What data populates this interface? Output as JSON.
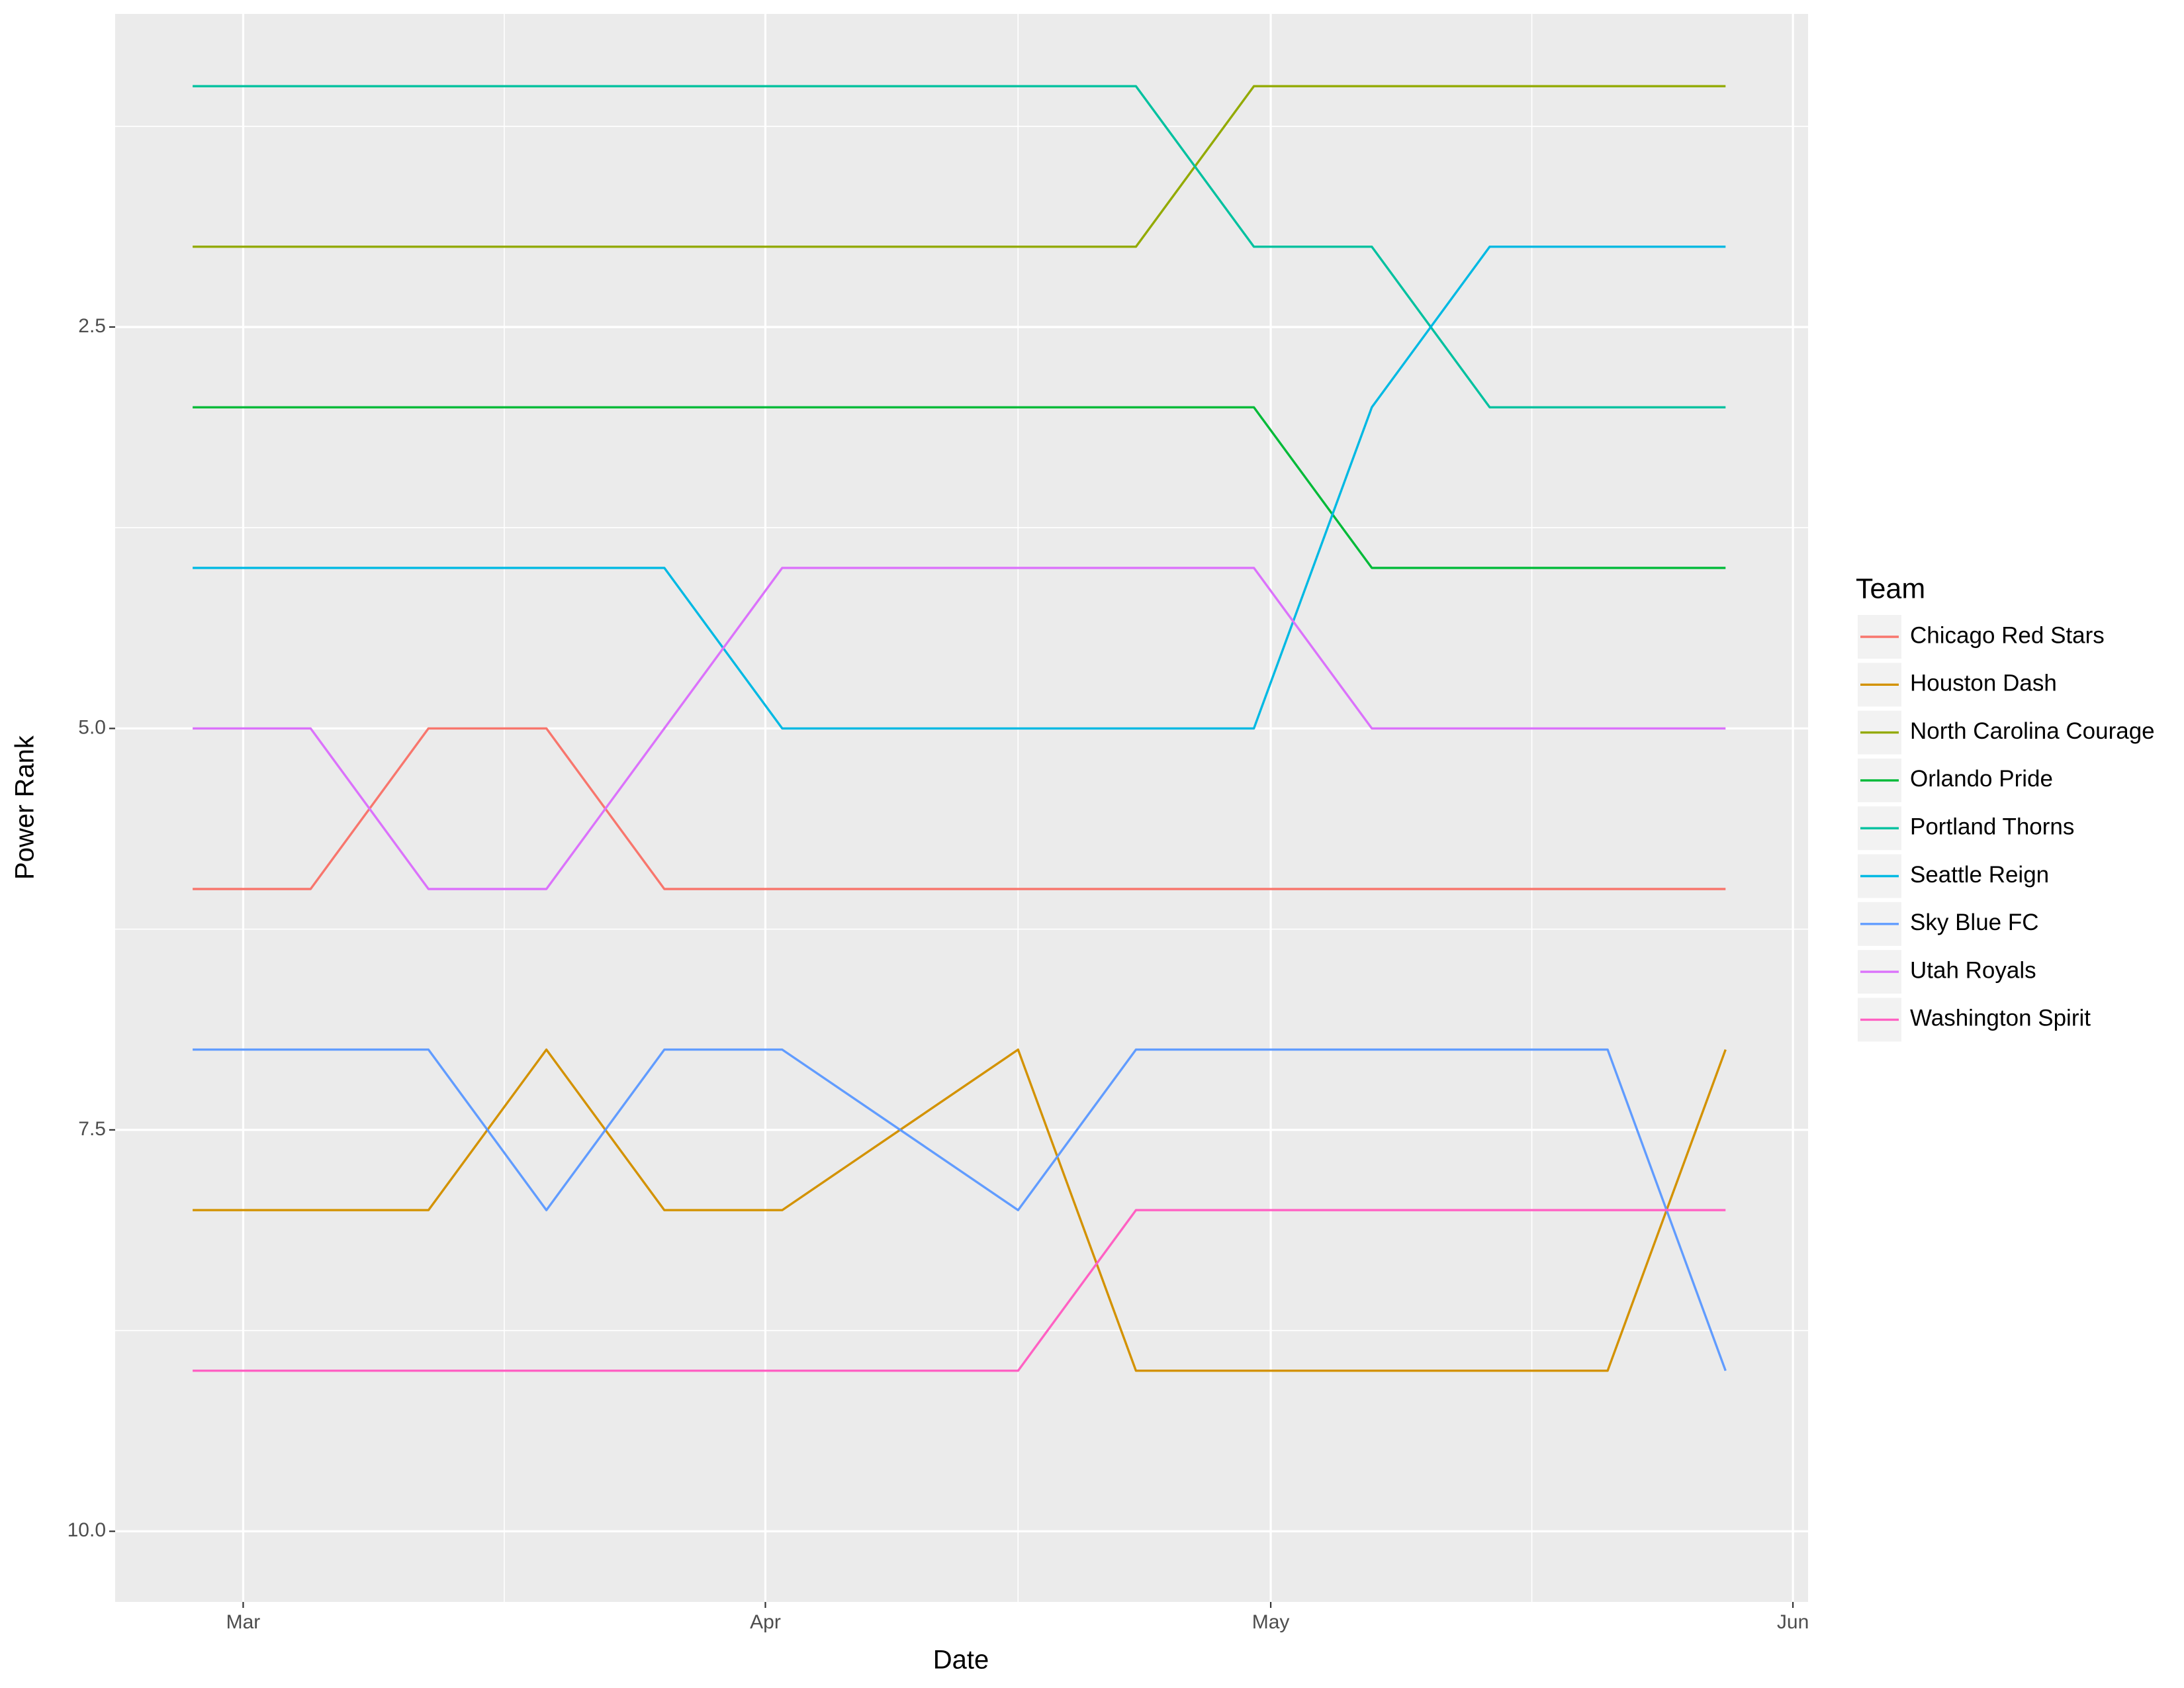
{
  "chart_data": {
    "type": "line",
    "xlabel": "Date",
    "ylabel": "Power Rank",
    "legend_title": "Team",
    "legend": "right",
    "grid": true,
    "y_reversed": true,
    "x": [
      57,
      64,
      71,
      78,
      85,
      92,
      99,
      106,
      113,
      120,
      127,
      134,
      141,
      148
    ],
    "xlim": [
      52.4,
      152.9
    ],
    "xticks": [
      {
        "value": 60,
        "label": "Mar"
      },
      {
        "value": 91,
        "label": "Apr"
      },
      {
        "value": 121,
        "label": "May"
      },
      {
        "value": 152,
        "label": "Jun"
      }
    ],
    "ylim": [
      0.55,
      10.44
    ],
    "yticks": [
      2.5,
      {
        "value": 5,
        "label": "5.0"
      },
      7.5,
      {
        "value": 10,
        "label": "10.0"
      }
    ],
    "series": [
      {
        "name": "Chicago Red Stars",
        "color": "#F8766D",
        "values": [
          6,
          6,
          5,
          5,
          6,
          6,
          6,
          6,
          6,
          6,
          6,
          6,
          6,
          6
        ]
      },
      {
        "name": "Houston Dash",
        "color": "#D39200",
        "values": [
          8,
          8,
          8,
          7,
          8,
          8,
          7.5,
          7,
          9,
          9,
          9,
          9,
          9,
          7
        ]
      },
      {
        "name": "North Carolina Courage",
        "color": "#93AA00",
        "values": [
          2,
          2,
          2,
          2,
          2,
          2,
          2,
          2,
          2,
          1,
          1,
          1,
          1,
          1
        ]
      },
      {
        "name": "Orlando Pride",
        "color": "#00BA38",
        "values": [
          3,
          3,
          3,
          3,
          3,
          3,
          3,
          3,
          3,
          3,
          4,
          4,
          4,
          4
        ]
      },
      {
        "name": "Portland Thorns",
        "color": "#00C19F",
        "values": [
          1,
          1,
          1,
          1,
          1,
          1,
          1,
          1,
          1,
          2,
          2,
          3,
          3,
          3
        ]
      },
      {
        "name": "Seattle Reign",
        "color": "#00B9E3",
        "values": [
          4,
          4,
          4,
          4,
          4,
          5,
          5,
          5,
          5,
          5,
          3,
          2,
          2,
          2
        ]
      },
      {
        "name": "Sky Blue FC",
        "color": "#619CFF",
        "values": [
          7,
          7,
          7,
          8,
          7,
          7,
          7.5,
          8,
          7,
          7,
          7,
          7,
          7,
          9
        ]
      },
      {
        "name": "Utah Royals",
        "color": "#DB72FB",
        "values": [
          5,
          5,
          6,
          6,
          5,
          4,
          4,
          4,
          4,
          4,
          5,
          5,
          5,
          5
        ]
      },
      {
        "name": "Washington Spirit",
        "color": "#FF61C3",
        "values": [
          9,
          9,
          9,
          9,
          9,
          9,
          9,
          9,
          8,
          8,
          8,
          8,
          8,
          8
        ]
      }
    ]
  }
}
